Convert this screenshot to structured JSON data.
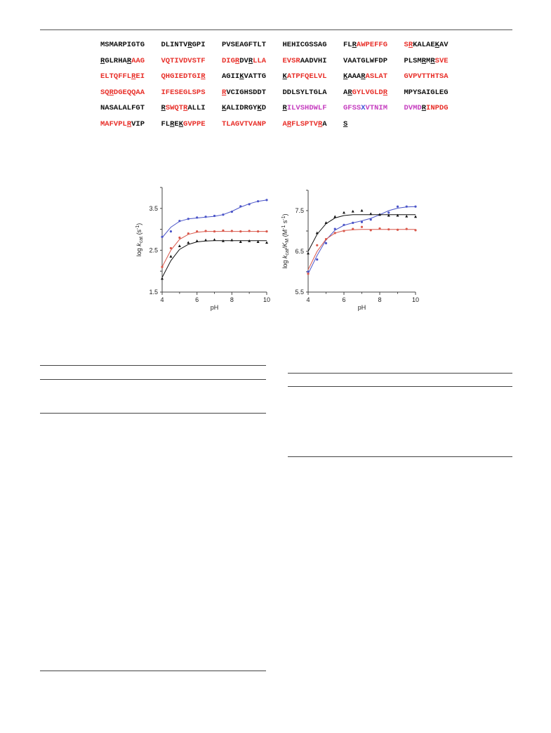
{
  "sequence": {
    "rows": [
      [
        [
          [
            "k",
            "MSMARPIGTG"
          ]
        ],
        [
          [
            "k",
            "DLINTV"
          ],
          [
            "ku",
            "R"
          ],
          [
            "k",
            "GPI"
          ]
        ],
        [
          [
            "k",
            "PVSEAGFTLT"
          ]
        ],
        [
          [
            "k",
            "HEHICGSSAG"
          ]
        ],
        [
          [
            "k",
            "FL"
          ],
          [
            "ku",
            "R"
          ],
          [
            "r",
            "AWPEFFG"
          ]
        ],
        [
          [
            "r",
            "S"
          ],
          [
            "ru",
            "R"
          ],
          [
            "k",
            "KALAE"
          ],
          [
            "ku",
            "K"
          ],
          [
            "k",
            "AV"
          ]
        ]
      ],
      [
        [
          [
            "ku",
            "R"
          ],
          [
            "k",
            "GLRHA"
          ],
          [
            "ku",
            "R"
          ],
          [
            "r",
            "AAG"
          ]
        ],
        [
          [
            "r",
            "VQTIVDVSTF"
          ]
        ],
        [
          [
            "r",
            "DIG"
          ],
          [
            "ru",
            "R"
          ],
          [
            "k",
            "DV"
          ],
          [
            "ku",
            "R"
          ],
          [
            "r",
            "LLA"
          ]
        ],
        [
          [
            "r",
            "EVSR"
          ],
          [
            "k",
            "AADVHI"
          ]
        ],
        [
          [
            "k",
            "VAATGLWFDP"
          ]
        ],
        [
          [
            "k",
            "PLSM"
          ],
          [
            "ku",
            "R"
          ],
          [
            "k",
            "M"
          ],
          [
            "ku",
            "R"
          ],
          [
            "r",
            "SVE"
          ]
        ]
      ],
      [
        [
          [
            "r",
            "ELTQFFL"
          ],
          [
            "ru",
            "R"
          ],
          [
            "r",
            "EI"
          ]
        ],
        [
          [
            "r",
            "QHGIEDTGI"
          ],
          [
            "ru",
            "R"
          ]
        ],
        [
          [
            "k",
            "AGII"
          ],
          [
            "ku",
            "K"
          ],
          [
            "k",
            "VATTG"
          ]
        ],
        [
          [
            "ku",
            "K"
          ],
          [
            "r",
            "ATPFQELVL"
          ]
        ],
        [
          [
            "ku",
            "K"
          ],
          [
            "k",
            "AAA"
          ],
          [
            "ku",
            "R"
          ],
          [
            "r",
            "ASLAT"
          ]
        ],
        [
          [
            "r",
            "GVPVTTHTSA"
          ]
        ]
      ],
      [
        [
          [
            "r",
            "SQ"
          ],
          [
            "ru",
            "R"
          ],
          [
            "r",
            "DGEQQAA"
          ]
        ],
        [
          [
            "r",
            "IFESEGLSPS"
          ]
        ],
        [
          [
            "ru",
            "R"
          ],
          [
            "k",
            "VCIGHSDDT"
          ]
        ],
        [
          [
            "k",
            "DDLSYLTGLA"
          ]
        ],
        [
          [
            "k",
            "A"
          ],
          [
            "ku",
            "R"
          ],
          [
            "r",
            "GYLVGLD"
          ],
          [
            "ru",
            "R"
          ]
        ],
        [
          [
            "k",
            "MPYSAIGLEG"
          ]
        ]
      ],
      [
        [
          [
            "k",
            "NASALALFGT"
          ]
        ],
        [
          [
            "ku",
            "R"
          ],
          [
            "r",
            "SWQT"
          ],
          [
            "ru",
            "R"
          ],
          [
            "k",
            "ALLI"
          ]
        ],
        [
          [
            "ku",
            "K"
          ],
          [
            "k",
            "ALIDRGY"
          ],
          [
            "ku",
            "K"
          ],
          [
            "k",
            "D"
          ]
        ],
        [
          [
            "ku",
            "R"
          ],
          [
            "m",
            "ILVSHDWLF"
          ]
        ],
        [
          [
            "m",
            "GFSS"
          ],
          [
            "b",
            "X"
          ],
          [
            "m",
            "VTNIM"
          ]
        ],
        [
          [
            "m",
            "DVMD"
          ],
          [
            "ku",
            "R"
          ],
          [
            "r",
            "INPDG"
          ]
        ]
      ],
      [
        [
          [
            "r",
            "MAFVPL"
          ],
          [
            "ru",
            "R"
          ],
          [
            "k",
            "VIP"
          ]
        ],
        [
          [
            "k",
            "FL"
          ],
          [
            "ku",
            "R"
          ],
          [
            "k",
            "E"
          ],
          [
            "ku",
            "K"
          ],
          [
            "r",
            "GVPPE"
          ]
        ],
        [
          [
            "r",
            "TLAGVTVANP"
          ]
        ],
        [
          [
            "r",
            "A"
          ],
          [
            "ru",
            "R"
          ],
          [
            "r",
            "FLSPTV"
          ],
          [
            "ru",
            "R"
          ],
          [
            "k",
            "A"
          ]
        ],
        [
          [
            "ku",
            "S"
          ]
        ]
      ]
    ]
  },
  "charts_text": {
    "left_ylabel_pre": "log ",
    "left_ylabel_k": "k",
    "left_ylabel_sub": "cat",
    "left_ylabel_unit": " (s",
    "left_ylabel_sup": "-1",
    "left_ylabel_close": ")",
    "right_ylabel_pre": "log ",
    "right_ylabel_k": "k",
    "right_ylabel_sub": "cat",
    "right_ylabel_slash": "/",
    "right_ylabel_K": "K",
    "right_ylabel_sub2": "M",
    "right_ylabel_unit": " (M",
    "right_ylabel_sup1": "-1",
    "right_ylabel_mid": " s",
    "right_ylabel_sup2": "-1",
    "right_ylabel_close": ")"
  },
  "chart_data": [
    {
      "type": "scatter",
      "xlabel": "pH",
      "ylabel": "log kcat (s-1)",
      "xlim": [
        4,
        10
      ],
      "ylim": [
        1.5,
        4.0
      ],
      "xticks": [
        "4",
        "6",
        "8",
        "10"
      ],
      "yticks": [
        "1.5",
        "2.5",
        "3.5"
      ],
      "series": [
        {
          "color": "#4a54c8",
          "marker": "dot",
          "x": [
            4,
            4.5,
            5,
            5.5,
            6,
            6.5,
            7,
            7.5,
            8,
            8.5,
            9,
            9.5,
            10
          ],
          "y": [
            2.82,
            2.95,
            3.2,
            3.25,
            3.28,
            3.3,
            3.32,
            3.35,
            3.42,
            3.55,
            3.6,
            3.67,
            3.7
          ],
          "fit": [
            [
              4,
              2.8
            ],
            [
              4.5,
              3.05
            ],
            [
              5,
              3.19
            ],
            [
              5.5,
              3.25
            ],
            [
              6,
              3.27
            ],
            [
              6.5,
              3.29
            ],
            [
              7,
              3.31
            ],
            [
              7.5,
              3.35
            ],
            [
              8,
              3.43
            ],
            [
              8.5,
              3.53
            ],
            [
              9,
              3.61
            ],
            [
              9.5,
              3.67
            ],
            [
              10,
              3.7
            ]
          ]
        },
        {
          "color": "#d9574a",
          "marker": "dot",
          "x": [
            4,
            4.5,
            5,
            5.5,
            6,
            6.5,
            7,
            7.5,
            8,
            8.5,
            9,
            9.5,
            10
          ],
          "y": [
            2.1,
            2.55,
            2.8,
            2.9,
            2.95,
            2.96,
            2.95,
            2.97,
            2.96,
            2.95,
            2.96,
            2.95,
            2.95
          ],
          "fit": [
            [
              4,
              2.1
            ],
            [
              4.5,
              2.5
            ],
            [
              5,
              2.76
            ],
            [
              5.5,
              2.88
            ],
            [
              6,
              2.93
            ],
            [
              6.5,
              2.95
            ],
            [
              7,
              2.95
            ],
            [
              8,
              2.95
            ],
            [
              9,
              2.95
            ],
            [
              10,
              2.95
            ]
          ]
        },
        {
          "color": "#111111",
          "marker": "triangle",
          "x": [
            4,
            4.5,
            5,
            5.5,
            6,
            6.5,
            7,
            7.5,
            8,
            8.5,
            9,
            9.5,
            10
          ],
          "y": [
            1.82,
            2.35,
            2.6,
            2.68,
            2.72,
            2.74,
            2.75,
            2.72,
            2.74,
            2.7,
            2.72,
            2.7,
            2.68
          ],
          "fit": [
            [
              4,
              1.85
            ],
            [
              4.5,
              2.25
            ],
            [
              5,
              2.52
            ],
            [
              5.5,
              2.64
            ],
            [
              6,
              2.7
            ],
            [
              6.5,
              2.72
            ],
            [
              7,
              2.73
            ],
            [
              8,
              2.73
            ],
            [
              9,
              2.73
            ],
            [
              10,
              2.73
            ]
          ]
        }
      ]
    },
    {
      "type": "scatter",
      "xlabel": "pH",
      "ylabel": "log kcat/KM (M-1 s-1)",
      "xlim": [
        4,
        10
      ],
      "ylim": [
        5.5,
        8.0
      ],
      "xticks": [
        "4",
        "6",
        "8",
        "10"
      ],
      "yticks": [
        "5.5",
        "6.5",
        "7.5"
      ],
      "series": [
        {
          "color": "#4a54c8",
          "marker": "dot",
          "x": [
            4,
            4.5,
            5,
            5.5,
            6,
            6.5,
            7,
            7.5,
            8,
            8.5,
            9,
            9.5,
            10
          ],
          "y": [
            6.0,
            6.3,
            6.7,
            7.05,
            7.15,
            7.2,
            7.22,
            7.28,
            7.4,
            7.45,
            7.6,
            7.6,
            7.6
          ],
          "fit": [
            [
              4,
              5.95
            ],
            [
              4.5,
              6.4
            ],
            [
              5,
              6.78
            ],
            [
              5.5,
              7.02
            ],
            [
              6,
              7.14
            ],
            [
              6.5,
              7.2
            ],
            [
              7,
              7.25
            ],
            [
              7.5,
              7.31
            ],
            [
              8,
              7.4
            ],
            [
              8.5,
              7.5
            ],
            [
              9,
              7.56
            ],
            [
              9.5,
              7.59
            ],
            [
              10,
              7.6
            ]
          ]
        },
        {
          "color": "#d9574a",
          "marker": "dot",
          "x": [
            4,
            4.5,
            5,
            5.5,
            6,
            6.5,
            7,
            7.5,
            8,
            8.5,
            9,
            9.5,
            10
          ],
          "y": [
            5.95,
            6.65,
            6.8,
            6.95,
            7.0,
            7.05,
            7.1,
            7.02,
            7.06,
            7.04,
            7.03,
            7.05,
            7.02
          ],
          "fit": [
            [
              4,
              6.05
            ],
            [
              4.5,
              6.5
            ],
            [
              5,
              6.8
            ],
            [
              5.5,
              6.95
            ],
            [
              6,
              7.01
            ],
            [
              6.5,
              7.03
            ],
            [
              7,
              7.04
            ],
            [
              8,
              7.04
            ],
            [
              9,
              7.04
            ],
            [
              10,
              7.04
            ]
          ]
        },
        {
          "color": "#111111",
          "marker": "triangle",
          "x": [
            4,
            4.5,
            5,
            5.5,
            6,
            6.5,
            7,
            7.5,
            8,
            8.5,
            9,
            9.5,
            10
          ],
          "y": [
            6.45,
            6.95,
            7.2,
            7.35,
            7.45,
            7.48,
            7.5,
            7.42,
            7.4,
            7.38,
            7.38,
            7.36,
            7.35
          ],
          "fit": [
            [
              4,
              6.5
            ],
            [
              4.5,
              6.92
            ],
            [
              5,
              7.18
            ],
            [
              5.5,
              7.32
            ],
            [
              6,
              7.38
            ],
            [
              6.5,
              7.4
            ],
            [
              7,
              7.4
            ],
            [
              8,
              7.4
            ],
            [
              9,
              7.4
            ],
            [
              10,
              7.4
            ]
          ]
        }
      ]
    }
  ]
}
